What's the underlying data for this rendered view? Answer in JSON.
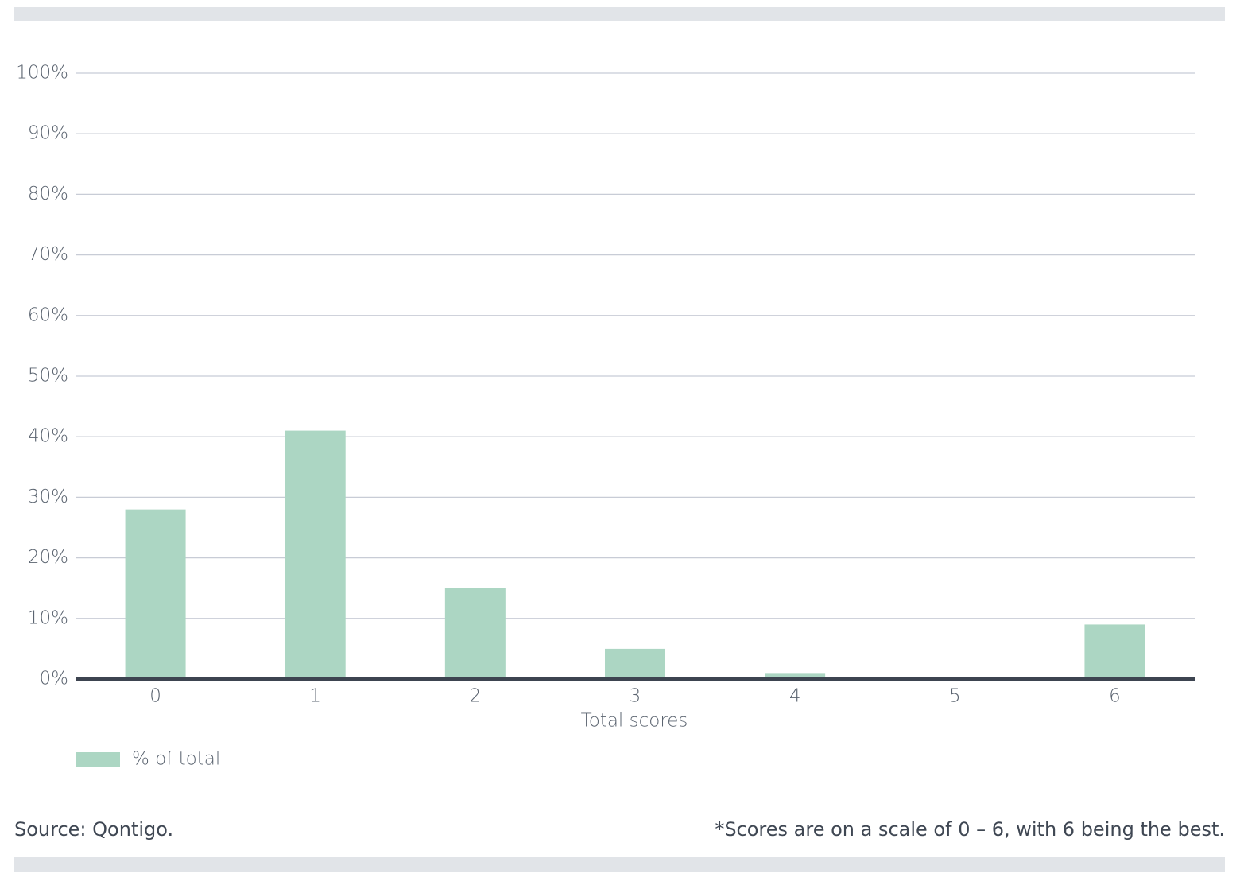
{
  "chart_data": {
    "type": "bar",
    "categories": [
      "0",
      "1",
      "2",
      "3",
      "4",
      "5",
      "6"
    ],
    "series": [
      {
        "name": "% of total",
        "color": "#acd6c3",
        "values": [
          28,
          41,
          15,
          5,
          1,
          0,
          9
        ]
      }
    ],
    "x_label": "Total scores",
    "ylim": [
      0,
      100
    ],
    "yticks": [
      {
        "value": 0,
        "label": "0%"
      },
      {
        "value": 10,
        "label": "10%"
      },
      {
        "value": 20,
        "label": "20%"
      },
      {
        "value": 30,
        "label": "30%"
      },
      {
        "value": 40,
        "label": "40%"
      },
      {
        "value": 50,
        "label": "50%"
      },
      {
        "value": 60,
        "label": "60%"
      },
      {
        "value": 70,
        "label": "70%"
      },
      {
        "value": 80,
        "label": "80%"
      },
      {
        "value": 90,
        "label": "90%"
      },
      {
        "value": 100,
        "label": "100%"
      }
    ],
    "grid": true,
    "legend": "bottom-left",
    "source": "Source: Qontigo.",
    "note": "*Scores are on a scale of 0 – 6, with 6 being the best."
  }
}
